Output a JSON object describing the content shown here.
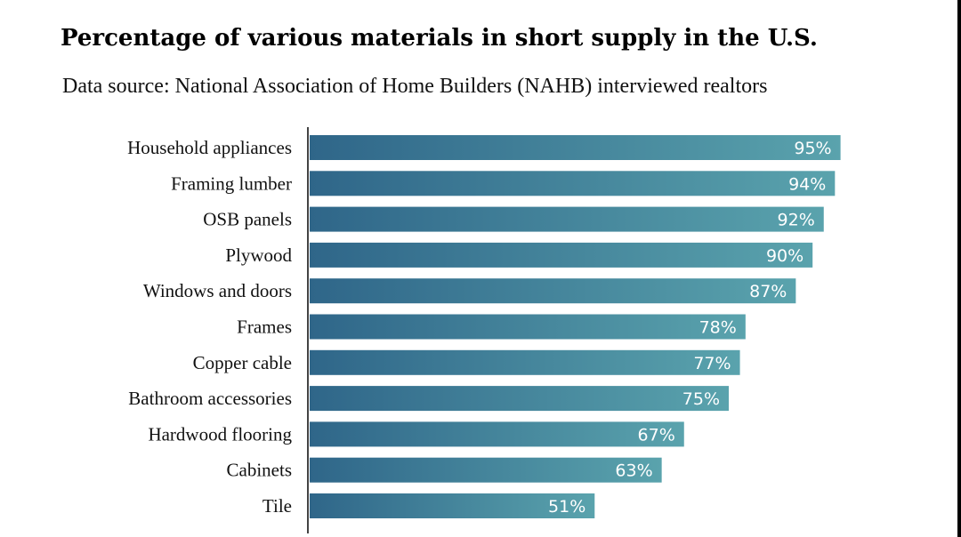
{
  "chart_data": {
    "type": "bar",
    "orientation": "horizontal",
    "title": "Percentage of various materials in short supply in the U.S.",
    "subtitle": "Data source: National Association of Home Builders (NAHB) interviewed realtors",
    "categories": [
      "Household appliances",
      "Framing lumber",
      "OSB panels",
      "Plywood",
      "Windows and doors",
      "Frames",
      "Copper cable",
      "Bathroom accessories",
      "Hardwood flooring",
      "Cabinets",
      "Tile"
    ],
    "values": [
      95,
      94,
      92,
      90,
      87,
      78,
      77,
      75,
      67,
      63,
      51
    ],
    "value_labels": [
      "95%",
      "94%",
      "92%",
      "90%",
      "87%",
      "78%",
      "77%",
      "75%",
      "67%",
      "63%",
      "51%"
    ],
    "xlim": [
      0,
      100
    ],
    "grid": false,
    "legend": "none",
    "bar_gradient": [
      "#2f6689",
      "#5aa3ad"
    ]
  }
}
